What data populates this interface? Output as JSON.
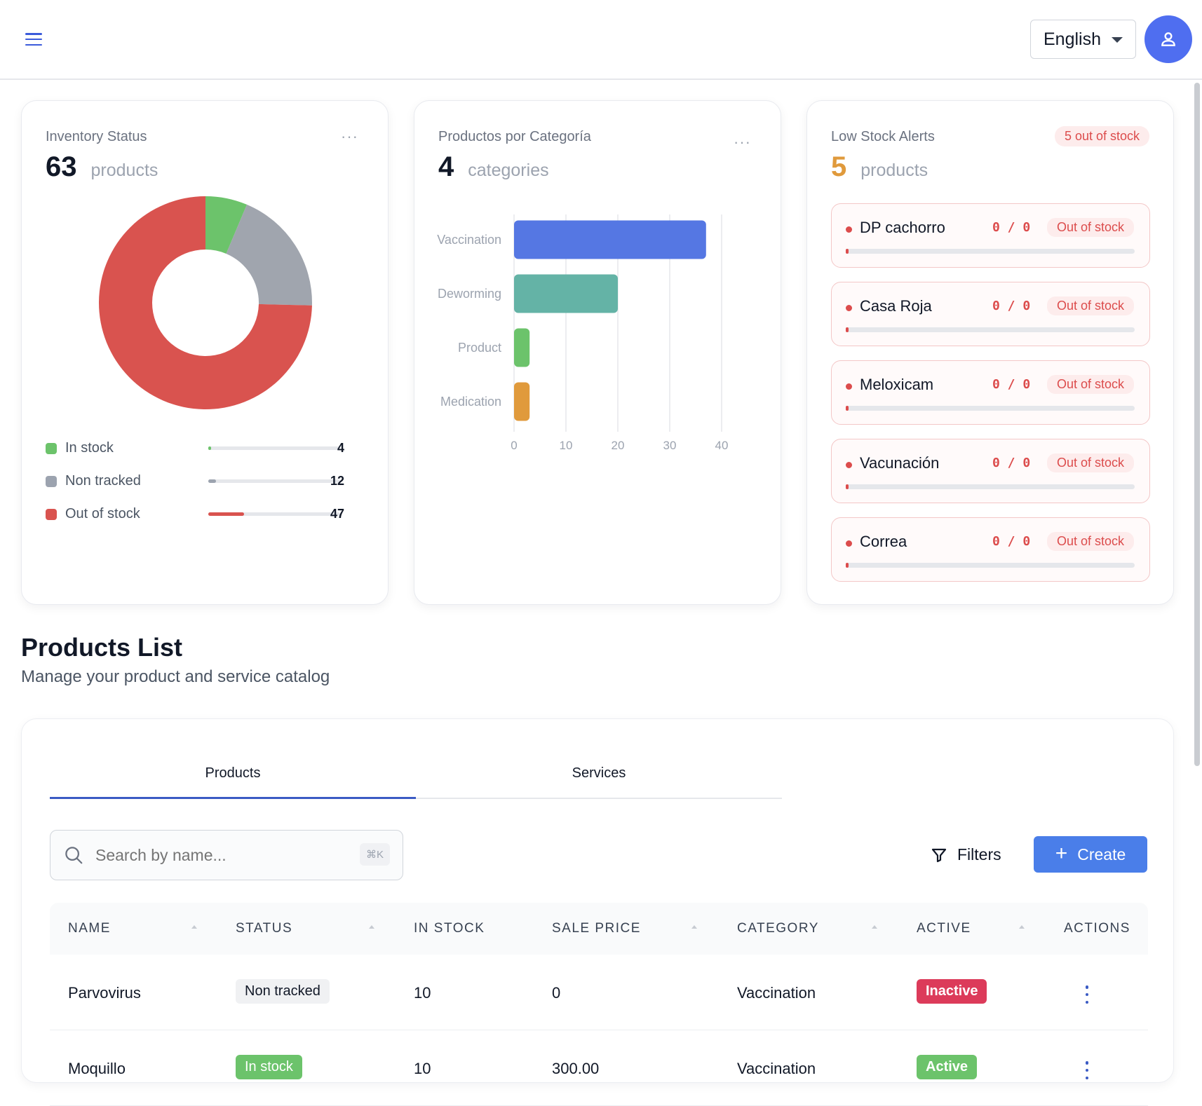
{
  "header": {
    "language": "English"
  },
  "inventory_card": {
    "title": "Inventory Status",
    "count": "63",
    "unit": "products",
    "legend": [
      {
        "label": "In stock",
        "value": "4",
        "color": "#6cc36b"
      },
      {
        "label": "Non tracked",
        "value": "12",
        "color": "#9ca3af"
      },
      {
        "label": "Out of stock",
        "value": "47",
        "color": "#d9534f"
      }
    ]
  },
  "category_card": {
    "title": "Productos por Categoría",
    "count": "4",
    "unit": "categories"
  },
  "alerts_card": {
    "title": "Low Stock Alerts",
    "badge": "5 out of stock",
    "count": "5",
    "unit": "products",
    "items": [
      {
        "name": "DP cachorro",
        "qty": "0 / 0",
        "status": "Out of stock"
      },
      {
        "name": "Casa Roja",
        "qty": "0 / 0",
        "status": "Out of stock"
      },
      {
        "name": "Meloxicam",
        "qty": "0 / 0",
        "status": "Out of stock"
      },
      {
        "name": "Vacunación",
        "qty": "0 / 0",
        "status": "Out of stock"
      },
      {
        "name": "Correa",
        "qty": "0 / 0",
        "status": "Out of stock"
      }
    ]
  },
  "chart_data": [
    {
      "type": "pie",
      "categories": [
        "In stock",
        "Non tracked",
        "Out of stock"
      ],
      "values": [
        4,
        12,
        47
      ],
      "colors": [
        "#6cc36b",
        "#a0a5ae",
        "#d9534f"
      ],
      "donut": true
    },
    {
      "type": "bar",
      "orientation": "horizontal",
      "categories": [
        "Vaccination",
        "Deworming",
        "Product",
        "Medication"
      ],
      "values": [
        37,
        20,
        3,
        3
      ],
      "colors": [
        "#5577e3",
        "#64b3a6",
        "#6cc36b",
        "#e09a3c"
      ],
      "xlim": [
        0,
        40
      ],
      "xticks": [
        "0",
        "10",
        "20",
        "30",
        "40"
      ],
      "grid": true
    }
  ],
  "products": {
    "title": "Products List",
    "subtitle": "Manage your product and service catalog",
    "tabs": [
      "Products",
      "Services"
    ],
    "search_placeholder": "Search by name...",
    "search_shortcut": "⌘K",
    "filters_label": "Filters",
    "create_label": "Create",
    "columns": [
      "NAME",
      "STATUS",
      "IN STOCK",
      "SALE PRICE",
      "CATEGORY",
      "ACTIVE",
      "ACTIONS"
    ],
    "rows": [
      {
        "name": "Parvovirus",
        "status": "Non tracked",
        "in_stock": "10",
        "sale_price": "0",
        "category": "Vaccination",
        "active": "Inactive"
      },
      {
        "name": "Moquillo",
        "status": "In stock",
        "in_stock": "10",
        "sale_price": "300.00",
        "category": "Vaccination",
        "active": "Active"
      }
    ]
  }
}
